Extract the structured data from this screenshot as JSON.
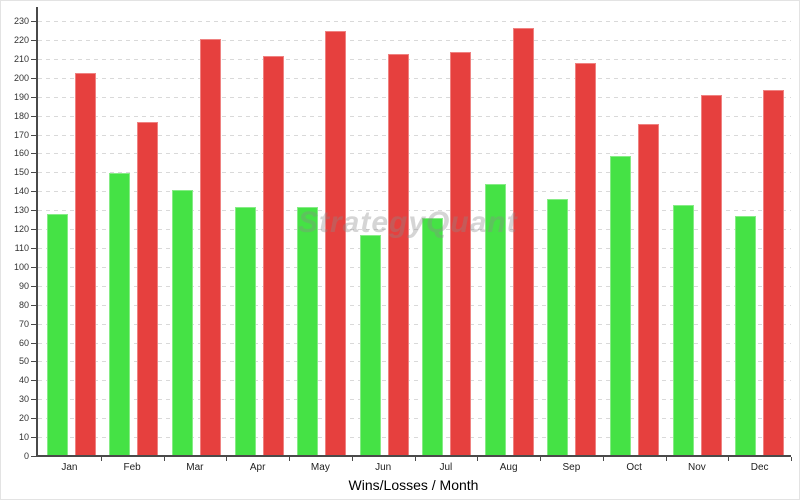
{
  "chart_data": {
    "type": "bar",
    "title": "",
    "xlabel": "Wins/Losses / Month",
    "ylabel": "",
    "categories": [
      "Jan",
      "Feb",
      "Mar",
      "Apr",
      "May",
      "Jun",
      "Jul",
      "Aug",
      "Sep",
      "Oct",
      "Nov",
      "Dec"
    ],
    "series": [
      {
        "name": "wins",
        "color": "#45e245",
        "values": [
          128,
          150,
          141,
          132,
          132,
          117,
          126,
          144,
          136,
          159,
          133,
          127
        ]
      },
      {
        "name": "losses",
        "color": "#e6403e",
        "values": [
          203,
          177,
          221,
          212,
          225,
          213,
          214,
          227,
          208,
          176,
          191,
          194
        ]
      }
    ],
    "ylim": [
      0,
      238
    ],
    "ytick_step": 10,
    "ytick_max": 230,
    "grid": "horizontal-dashed",
    "legend_position": "none",
    "watermark": "StrategyQuant"
  },
  "colors": {
    "win_bar": "#45e245",
    "loss_bar": "#e6403e",
    "axis": "#4a4a4a",
    "gridline": "#d9d9d9",
    "watermark": "#8a8a8a"
  }
}
